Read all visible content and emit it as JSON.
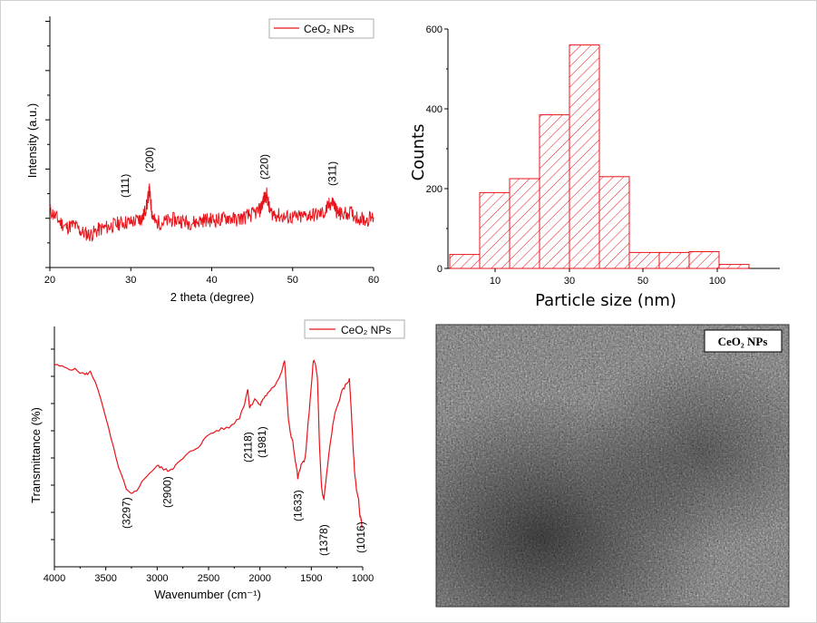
{
  "chart_data": [
    {
      "type": "line",
      "title": "",
      "xlabel": "2 theta (degree)",
      "ylabel": "Intensity (a.u.)",
      "xlim": [
        20,
        60
      ],
      "xticks": [
        "20",
        "30",
        "40",
        "50",
        "60"
      ],
      "legend": {
        "label": "CeO₂ NPs",
        "placement": "top-right"
      },
      "series": [
        {
          "name": "CeO₂ NPs",
          "color": "#e8141b",
          "x": [
            20,
            21,
            22,
            23,
            24,
            25,
            26,
            27,
            28,
            29,
            30,
            31,
            31.5,
            32,
            32.3,
            32.6,
            33,
            34,
            35,
            36,
            37,
            38,
            39,
            40,
            41,
            42,
            43,
            44,
            45,
            46,
            46.4,
            46.8,
            47.2,
            48,
            49,
            50,
            51,
            52,
            53,
            54,
            54.5,
            55,
            55.5,
            56,
            57,
            58,
            59,
            60
          ],
          "y": [
            0.23,
            0.19,
            0.16,
            0.17,
            0.14,
            0.13,
            0.15,
            0.16,
            0.17,
            0.18,
            0.18,
            0.19,
            0.2,
            0.25,
            0.31,
            0.22,
            0.18,
            0.18,
            0.19,
            0.19,
            0.18,
            0.18,
            0.19,
            0.19,
            0.19,
            0.2,
            0.19,
            0.2,
            0.21,
            0.23,
            0.27,
            0.29,
            0.22,
            0.21,
            0.2,
            0.2,
            0.2,
            0.21,
            0.21,
            0.22,
            0.25,
            0.26,
            0.22,
            0.21,
            0.22,
            0.2,
            0.19,
            0.2
          ]
        }
      ],
      "annotations": [
        {
          "text": "(111)",
          "x": 29.3
        },
        {
          "text": "(200)",
          "x": 32.3
        },
        {
          "text": "(220)",
          "x": 46.5
        },
        {
          "text": "(311)",
          "x": 54.9
        }
      ]
    },
    {
      "type": "bar",
      "title": "",
      "xlabel": "Particle size (nm)",
      "ylabel": "Counts",
      "ylim": [
        0,
        600
      ],
      "yticks": [
        "0",
        "200",
        "400",
        "600"
      ],
      "xticks": [
        "10",
        "30",
        "50",
        "100"
      ],
      "hatch": "diagonal",
      "color": "#e8141b",
      "values": [
        35,
        190,
        225,
        385,
        560,
        230,
        40,
        40,
        42,
        10
      ]
    },
    {
      "type": "line",
      "title": "",
      "xlabel": "Wavenumber (cm⁻¹)",
      "ylabel": "Transmittance (%)",
      "xlim": [
        4000,
        1000
      ],
      "xticks": [
        "4000",
        "3500",
        "3000",
        "2500",
        "2000",
        "1500",
        "1000"
      ],
      "legend": {
        "label": "CeO₂ NPs",
        "placement": "top-right"
      },
      "series": [
        {
          "name": "CeO₂ NPs",
          "color": "#e8141b",
          "x": [
            4000,
            3900,
            3800,
            3700,
            3650,
            3600,
            3500,
            3400,
            3300,
            3250,
            3200,
            3100,
            3000,
            2950,
            2900,
            2850,
            2800,
            2700,
            2600,
            2500,
            2400,
            2300,
            2200,
            2150,
            2118,
            2100,
            2050,
            2000,
            1981,
            1950,
            1900,
            1850,
            1800,
            1760,
            1740,
            1720,
            1700,
            1680,
            1660,
            1640,
            1633,
            1620,
            1600,
            1560,
            1540,
            1500,
            1480,
            1460,
            1440,
            1420,
            1400,
            1390,
            1378,
            1360,
            1320,
            1280,
            1240,
            1200,
            1160,
            1130,
            1120,
            1100,
            1080,
            1060,
            1040,
            1030,
            1016,
            1005
          ],
          "y": [
            0.84,
            0.83,
            0.82,
            0.8,
            0.81,
            0.77,
            0.62,
            0.45,
            0.32,
            0.3,
            0.32,
            0.38,
            0.42,
            0.41,
            0.4,
            0.41,
            0.43,
            0.47,
            0.5,
            0.55,
            0.57,
            0.58,
            0.62,
            0.68,
            0.74,
            0.66,
            0.7,
            0.67,
            0.69,
            0.71,
            0.73,
            0.76,
            0.8,
            0.86,
            0.72,
            0.6,
            0.55,
            0.52,
            0.45,
            0.4,
            0.37,
            0.39,
            0.42,
            0.45,
            0.55,
            0.75,
            0.86,
            0.84,
            0.78,
            0.5,
            0.33,
            0.3,
            0.28,
            0.35,
            0.5,
            0.62,
            0.68,
            0.73,
            0.76,
            0.78,
            0.72,
            0.55,
            0.4,
            0.32,
            0.28,
            0.22,
            0.2,
            0.16
          ]
        }
      ],
      "annotations": [
        {
          "text": "(3297)",
          "x": 3297
        },
        {
          "text": "(2900)",
          "x": 2900
        },
        {
          "text": "(2118)",
          "x": 2118
        },
        {
          "text": "(1981)",
          "x": 1981
        },
        {
          "text": "(1633)",
          "x": 1633
        },
        {
          "text": "(1378)",
          "x": 1378
        },
        {
          "text": "(1016)",
          "x": 1016
        }
      ]
    }
  ],
  "sem": {
    "label": "CeO₂ NPs"
  }
}
